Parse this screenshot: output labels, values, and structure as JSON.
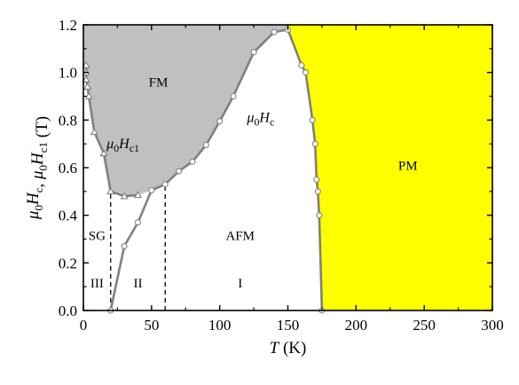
{
  "chart_data": {
    "type": "line",
    "title": "",
    "xlabel": "T (K)",
    "ylabel": "μ0Hc, μ0Hc1 (T)",
    "xlim": [
      0,
      300
    ],
    "ylim": [
      0.0,
      1.2
    ],
    "xticks": [
      0,
      50,
      100,
      150,
      200,
      250,
      300
    ],
    "yticks": [
      0.0,
      0.2,
      0.4,
      0.6,
      0.8,
      1.0,
      1.2
    ],
    "xtick_labels": [
      "0",
      "50",
      "100",
      "150",
      "200",
      "250",
      "300"
    ],
    "ytick_labels": [
      "0.0",
      "0.2",
      "0.4",
      "0.6",
      "0.8",
      "1.0",
      "1.2"
    ],
    "grid": false,
    "colors": {
      "fm_fill": "#c0c0c0",
      "pm_fill": "#ffff00",
      "curve": "#808080",
      "marker_fill": "#ffffff",
      "axis": "#000000"
    },
    "series": [
      {
        "marker": "triangle",
        "points": [
          [
            2,
            1.03
          ],
          [
            2,
            1.0
          ],
          [
            2,
            0.97
          ],
          [
            3,
            0.94
          ],
          [
            4,
            0.9
          ],
          [
            8,
            0.75
          ],
          [
            15,
            0.66
          ],
          [
            20,
            0.5
          ],
          [
            30,
            0.48
          ],
          [
            40,
            0.485
          ]
        ]
      },
      {
        "marker": "circle",
        "points": [
          [
            20,
            0.0
          ],
          [
            30,
            0.27
          ],
          [
            40,
            0.37
          ],
          [
            50,
            0.505
          ],
          [
            60,
            0.53
          ],
          [
            70,
            0.585
          ],
          [
            80,
            0.625
          ],
          [
            90,
            0.695
          ],
          [
            100,
            0.795
          ],
          [
            110,
            0.9
          ],
          [
            125,
            1.085
          ],
          [
            140,
            1.17
          ],
          [
            150,
            1.18
          ],
          [
            160,
            1.03
          ],
          [
            163,
            1.0
          ],
          [
            168,
            0.8
          ],
          [
            170,
            0.7
          ],
          [
            171,
            0.55
          ],
          [
            172,
            0.5
          ],
          [
            173,
            0.4
          ],
          [
            175,
            0.0
          ]
        ]
      }
    ],
    "dashed_lines": [
      {
        "x": 20,
        "y_top": 0.5
      },
      {
        "x": 60,
        "y_top": 0.53
      }
    ],
    "annotations": [
      {
        "text": "FM",
        "x": 55,
        "y": 0.96
      },
      {
        "text": "PM",
        "x": 238,
        "y": 0.61
      },
      {
        "text": "AFM",
        "x": 115,
        "y": 0.315
      },
      {
        "text": "SG",
        "x": 10,
        "y": 0.315
      },
      {
        "text": "III",
        "x": 10,
        "y": 0.115
      },
      {
        "text": "II",
        "x": 40,
        "y": 0.115
      },
      {
        "text": "I",
        "x": 115,
        "y": 0.115
      }
    ],
    "curve_labels": [
      {
        "main": "μ0",
        "sub": "Hc1",
        "x": 17,
        "y": 0.7
      },
      {
        "main": "μ0",
        "sub": "Hc",
        "x": 120,
        "y": 0.81
      }
    ]
  }
}
